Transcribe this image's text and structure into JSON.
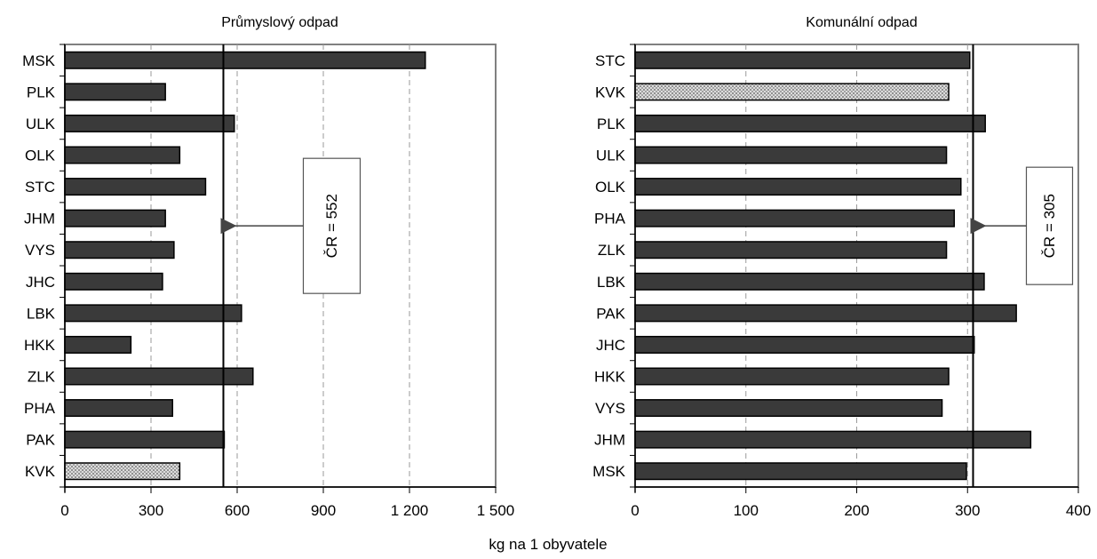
{
  "xlabel": "kg na 1 obyvatele",
  "colors": {
    "bar_fill": "#3a3a3a",
    "highlight_fill": "#d9d9d9",
    "plot_border": "#808080",
    "grid": "#9a9a9a",
    "reference_line": "#000000"
  },
  "chart_data": [
    {
      "type": "bar",
      "orientation": "horizontal",
      "title": "Průmyslový odpad",
      "categories": [
        "MSK",
        "PLK",
        "ULK",
        "OLK",
        "STC",
        "JHM",
        "VYS",
        "JHC",
        "LBK",
        "HKK",
        "ZLK",
        "PHA",
        "PAK",
        "KVK"
      ],
      "values": [
        1255,
        350,
        590,
        400,
        490,
        350,
        380,
        340,
        615,
        230,
        655,
        375,
        555,
        400
      ],
      "highlight_category": "KVK",
      "xlim": [
        0,
        1500
      ],
      "xticks": [
        0,
        300,
        600,
        900,
        1200,
        1500
      ],
      "xtick_labels": [
        "0",
        "300",
        "600",
        "900",
        "1 200",
        "1 500"
      ],
      "grid": true,
      "reference": {
        "value": 552,
        "label": "ČR = 552"
      }
    },
    {
      "type": "bar",
      "orientation": "horizontal",
      "title": "Komunální odpad",
      "categories": [
        "STC",
        "KVK",
        "PLK",
        "ULK",
        "OLK",
        "PHA",
        "ZLK",
        "LBK",
        "PAK",
        "JHC",
        "HKK",
        "VYS",
        "JHM",
        "MSK"
      ],
      "values": [
        302,
        283,
        316,
        281,
        294,
        288,
        281,
        315,
        344,
        306,
        283,
        277,
        357,
        299
      ],
      "highlight_category": "KVK",
      "xlim": [
        0,
        400
      ],
      "xticks": [
        0,
        100,
        200,
        300,
        400
      ],
      "xtick_labels": [
        "0",
        "100",
        "200",
        "300",
        "400"
      ],
      "grid": true,
      "reference": {
        "value": 305,
        "label": "ČR = 305"
      }
    }
  ]
}
